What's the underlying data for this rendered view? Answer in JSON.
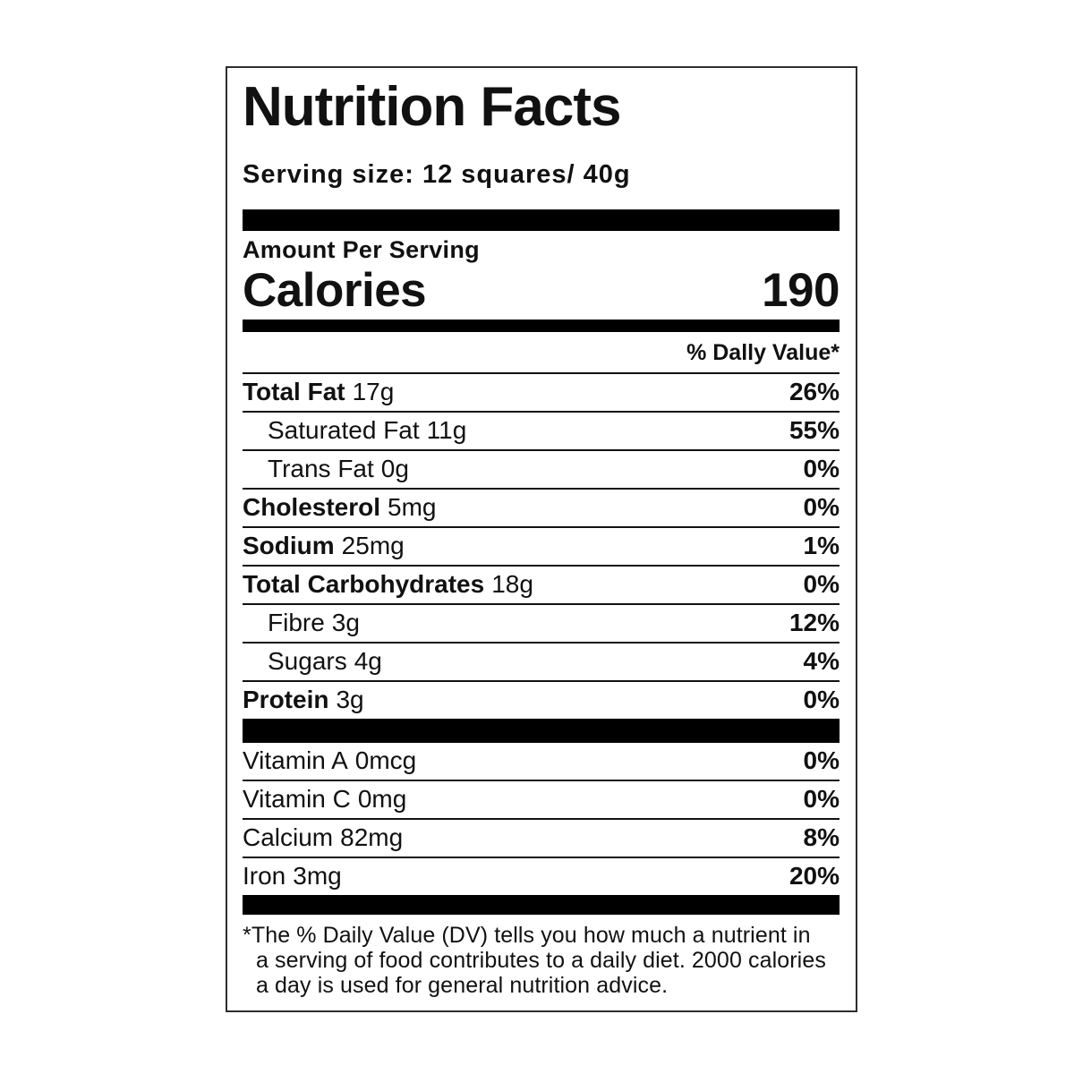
{
  "label": {
    "title": "Nutrition Facts",
    "serving_size": "Serving size: 12 squares/ 40g",
    "amount_per_serving": "Amount Per Serving",
    "calories_label": "Calories",
    "calories_value": "190",
    "daily_value_header": "% Dally Value*",
    "nutrients": [
      {
        "name": "Total Fat",
        "amount": "17g",
        "dv": "26%"
      },
      {
        "name": "Saturated Fat",
        "amount": "11g",
        "dv": "55%"
      },
      {
        "name": "Trans Fat",
        "amount": "0g",
        "dv": "0%"
      },
      {
        "name": "Cholesterol",
        "amount": "5mg",
        "dv": "0%"
      },
      {
        "name": "Sodium",
        "amount": "25mg",
        "dv": "1%"
      },
      {
        "name": "Total Carbohydrates",
        "amount": "18g",
        "dv": "0%"
      },
      {
        "name": "Fibre",
        "amount": "3g",
        "dv": "12%"
      },
      {
        "name": "Sugars",
        "amount": "4g",
        "dv": "4%"
      },
      {
        "name": "Protein",
        "amount": "3g",
        "dv": "0%"
      }
    ],
    "micronutrients": [
      {
        "name": "Vitamin A",
        "amount": "0mcg",
        "dv": "0%"
      },
      {
        "name": "Vitamin C",
        "amount": "0mg",
        "dv": "0%"
      },
      {
        "name": "Calcium",
        "amount": "82mg",
        "dv": "8%"
      },
      {
        "name": "Iron",
        "amount": "3mg",
        "dv": "20%"
      }
    ],
    "footnote_lines": [
      "*The % Daily Value (DV) tells you how much a nutrient in",
      "a serving of food contributes to a daily diet. 2000 calories",
      "a day is used for general nutrition advice."
    ]
  },
  "colors": {
    "text": "#111111",
    "bar": "#000000",
    "border": "#2e2e2e",
    "background": "#ffffff"
  }
}
